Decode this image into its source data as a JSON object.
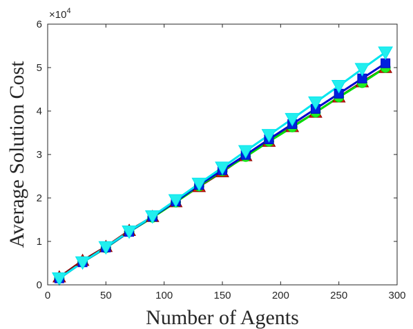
{
  "chart_data": {
    "type": "line",
    "title": "",
    "xlabel": "Number of Agents",
    "ylabel": "Average Solution Cost",
    "xlim": [
      0,
      300
    ],
    "ylim": [
      0,
      60000
    ],
    "xticks": [
      0,
      50,
      100,
      150,
      200,
      250,
      300
    ],
    "yticks": [
      0,
      10000,
      20000,
      30000,
      40000,
      50000,
      60000
    ],
    "xtick_labels": [
      "0",
      "50",
      "100",
      "150",
      "200",
      "250",
      "300"
    ],
    "ytick_labels": [
      "0",
      "1",
      "2",
      "3",
      "4",
      "5",
      "6"
    ],
    "y_exponent_base": "×10",
    "y_exponent_power": "4",
    "grid": false,
    "x": [
      10,
      30,
      50,
      70,
      90,
      110,
      130,
      150,
      170,
      190,
      210,
      230,
      250,
      270,
      290
    ],
    "series": [
      {
        "color": "#8b0000",
        "marker": "triangle-up",
        "marker_color": "#dd2200",
        "values": [
          1800,
          5600,
          8800,
          12500,
          15700,
          19100,
          22600,
          26000,
          29700,
          33000,
          36400,
          39700,
          43200,
          46700,
          50000
        ]
      },
      {
        "color": "#00dd00",
        "marker": "circle",
        "marker_color": "#22ee22",
        "values": [
          1500,
          5200,
          8500,
          12200,
          15500,
          19000,
          22700,
          26200,
          29500,
          33000,
          36300,
          39700,
          43200,
          46500,
          50000
        ]
      },
      {
        "color": "#0000cc",
        "marker": "square",
        "marker_color": "#0022dd",
        "values": [
          1500,
          5200,
          8600,
          12200,
          15700,
          19200,
          23000,
          26400,
          29900,
          33500,
          37000,
          40500,
          44000,
          47500,
          51000
        ]
      },
      {
        "color": "#00e5ee",
        "marker": "triangle-down",
        "marker_color": "#22eeee",
        "values": [
          1500,
          5200,
          8700,
          12300,
          15800,
          19500,
          23300,
          27000,
          30800,
          34500,
          38200,
          42000,
          45800,
          49700,
          53500
        ]
      }
    ]
  }
}
